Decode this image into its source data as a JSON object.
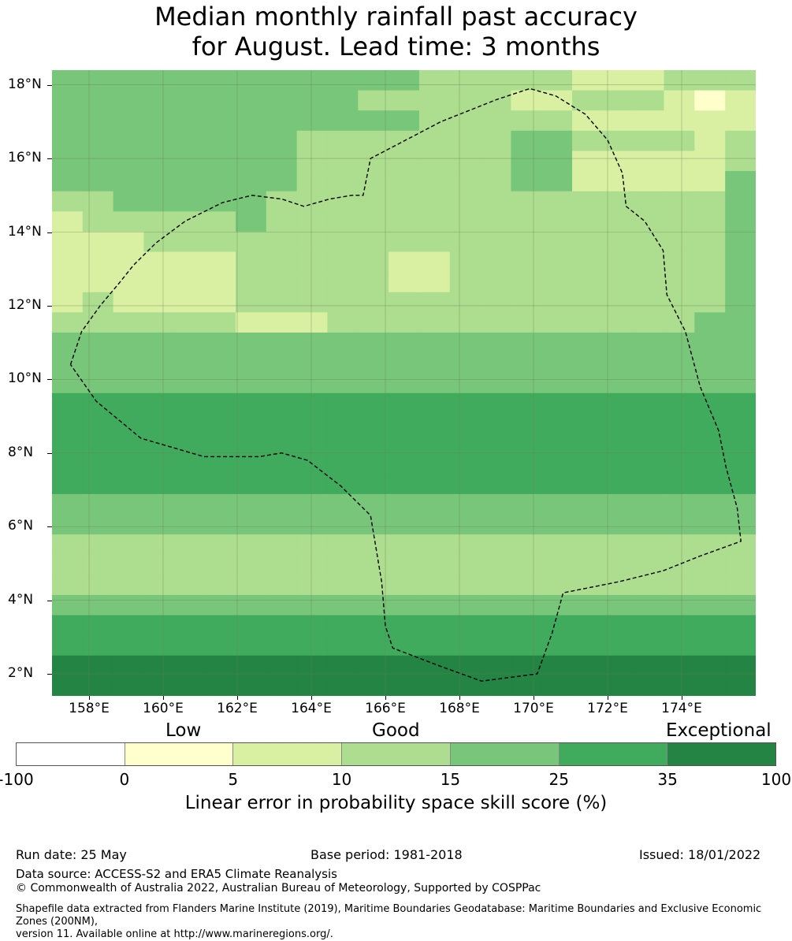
{
  "title": {
    "line1": "Median monthly rainfall past accuracy",
    "line2": "for August. Lead time: 3 months"
  },
  "map": {
    "lat_range": [
      1.4,
      18.4
    ],
    "lon_range": [
      157.0,
      176.0
    ],
    "lat_ticks": [
      "18°N",
      "16°N",
      "14°N",
      "12°N",
      "10°N",
      "8°N",
      "6°N",
      "4°N",
      "2°N"
    ],
    "lon_ticks": [
      "158°E",
      "160°E",
      "162°E",
      "164°E",
      "166°E",
      "168°E",
      "170°E",
      "172°E",
      "174°E"
    ],
    "grid_cols": 23,
    "grid_rows": 31,
    "grid_values": [
      "44444444444433333222333",
      "44444444443333322333212",
      "44444444444433333222222",
      "44444444333333344333323",
      "44444444333333344222223",
      "44444444333333344222224",
      "33444443333333333333334",
      "23333343333333333333334",
      "22233333333333333333334",
      "22222233333223333333334",
      "22222233333223333333334",
      "23222233333333333333334",
      "33333322233333333333344",
      "44444444444444444444444",
      "44444444444444444444444",
      "44444444444444444444444",
      "55555555555555555555555",
      "55555555555555555555555",
      "55555555555555555555555",
      "55555555555555555555555",
      "55555555555555555555555",
      "44444444444444444444444",
      "44444444444444444444444",
      "33333333333333333333333",
      "33333333333333333333333",
      "33333333333333333333333",
      "44444444444444444444444",
      "55555555555555555555555",
      "55555555555555555555555",
      "66666666666666666666666",
      "66666666666666666666666"
    ],
    "eez_boundary": [
      [
        157.5,
        10.4
      ],
      [
        157.8,
        11.3
      ],
      [
        158.3,
        12.0
      ],
      [
        158.8,
        12.6
      ],
      [
        159.2,
        13.1
      ],
      [
        159.8,
        13.7
      ],
      [
        160.6,
        14.3
      ],
      [
        161.6,
        14.8
      ],
      [
        162.4,
        15.0
      ],
      [
        163.2,
        14.9
      ],
      [
        163.8,
        14.7
      ],
      [
        164.5,
        14.9
      ],
      [
        165.1,
        15.0
      ],
      [
        165.4,
        15.0
      ],
      [
        165.6,
        16.0
      ],
      [
        167.5,
        17.0
      ],
      [
        169.0,
        17.6
      ],
      [
        169.9,
        17.9
      ],
      [
        170.6,
        17.7
      ],
      [
        171.4,
        17.2
      ],
      [
        172.0,
        16.5
      ],
      [
        172.4,
        15.6
      ],
      [
        172.5,
        14.7
      ],
      [
        173.0,
        14.3
      ],
      [
        173.5,
        13.5
      ],
      [
        173.6,
        12.3
      ],
      [
        174.1,
        11.3
      ],
      [
        174.5,
        9.8
      ],
      [
        175.0,
        8.6
      ],
      [
        175.2,
        7.6
      ],
      [
        175.5,
        6.5
      ],
      [
        175.6,
        5.6
      ],
      [
        174.5,
        5.2
      ],
      [
        173.5,
        4.8
      ],
      [
        172.3,
        4.5
      ],
      [
        170.8,
        4.2
      ],
      [
        170.5,
        3.1
      ],
      [
        170.1,
        2.0
      ],
      [
        168.6,
        1.8
      ],
      [
        167.5,
        2.2
      ],
      [
        166.2,
        2.7
      ],
      [
        166.0,
        3.3
      ],
      [
        165.9,
        4.5
      ],
      [
        165.6,
        6.3
      ],
      [
        164.8,
        7.1
      ],
      [
        163.9,
        7.8
      ],
      [
        163.2,
        8.0
      ],
      [
        162.6,
        7.9
      ],
      [
        161.1,
        7.9
      ],
      [
        159.4,
        8.4
      ],
      [
        158.2,
        9.4
      ],
      [
        157.5,
        10.4
      ]
    ]
  },
  "colorbar": {
    "category_labels": [
      "Low",
      "Good",
      "Exceptional"
    ],
    "tick_labels": [
      "-100",
      "0",
      "5",
      "10",
      "15",
      "25",
      "35",
      "100"
    ],
    "colors": [
      "#ffffff",
      "#ffffcc",
      "#d9f0a3",
      "#addd8e",
      "#78c679",
      "#41ab5d",
      "#238443"
    ],
    "label": "Linear error in probability space skill score (%)"
  },
  "footer": {
    "run_date": "Run date: 25 May",
    "base_period": "Base period: 1981-2018",
    "issued": "Issued: 18/01/2022",
    "data_source": "Data source: ACCESS-S2 and ERA5 Climate Reanalysis",
    "copyright": "© Commonwealth of Australia 2022, Australian Bureau of Meteorology, Supported by COSPPac",
    "shapefile_line1": "Shapefile data extracted from Flanders Marine Institute (2019), Maritime Boundaries Geodatabase: Maritime Boundaries and Exclusive Economic Zones (200NM),",
    "shapefile_line2": "version 11. Available online at http://www.marineregions.org/."
  }
}
